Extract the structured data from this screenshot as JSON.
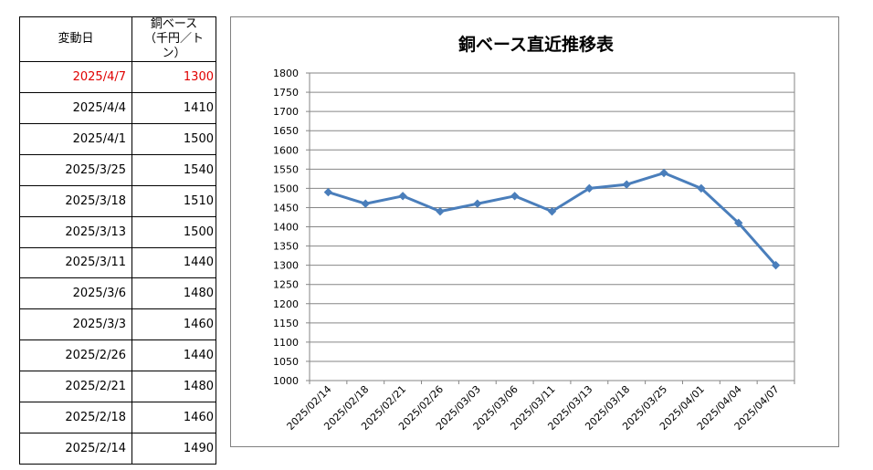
{
  "table": {
    "header_date": "変動日",
    "header_price_line1": "銅ベース",
    "header_price_line2": "（千円／トン）",
    "rows": [
      {
        "date": "2025/4/7",
        "price": "1300"
      },
      {
        "date": "2025/4/4",
        "price": "1410"
      },
      {
        "date": "2025/4/1",
        "price": "1500"
      },
      {
        "date": "2025/3/25",
        "price": "1540"
      },
      {
        "date": "2025/3/18",
        "price": "1510"
      },
      {
        "date": "2025/3/13",
        "price": "1500"
      },
      {
        "date": "2025/3/11",
        "price": "1440"
      },
      {
        "date": "2025/3/6",
        "price": "1480"
      },
      {
        "date": "2025/3/3",
        "price": "1460"
      },
      {
        "date": "2025/2/26",
        "price": "1440"
      },
      {
        "date": "2025/2/21",
        "price": "1480"
      },
      {
        "date": "2025/2/18",
        "price": "1460"
      },
      {
        "date": "2025/2/14",
        "price": "1490"
      }
    ],
    "highlight_color": "#e00000"
  },
  "chart_data": {
    "type": "line",
    "title": "銅ベース直近推移表",
    "xlabel": "",
    "ylabel": "",
    "categories": [
      "2025/02/14",
      "2025/02/18",
      "2025/02/21",
      "2025/02/26",
      "2025/03/03",
      "2025/03/06",
      "2025/03/11",
      "2025/03/13",
      "2025/03/18",
      "2025/03/25",
      "2025/04/01",
      "2025/04/04",
      "2025/04/07"
    ],
    "series": [
      {
        "values": [
          1490,
          1460,
          1480,
          1440,
          1460,
          1480,
          1440,
          1500,
          1510,
          1540,
          1500,
          1410,
          1300
        ],
        "color": "#4a7ebb"
      }
    ],
    "ylim": [
      1000,
      1800
    ],
    "ytick_step": 50,
    "grid": true,
    "legend": "none"
  }
}
